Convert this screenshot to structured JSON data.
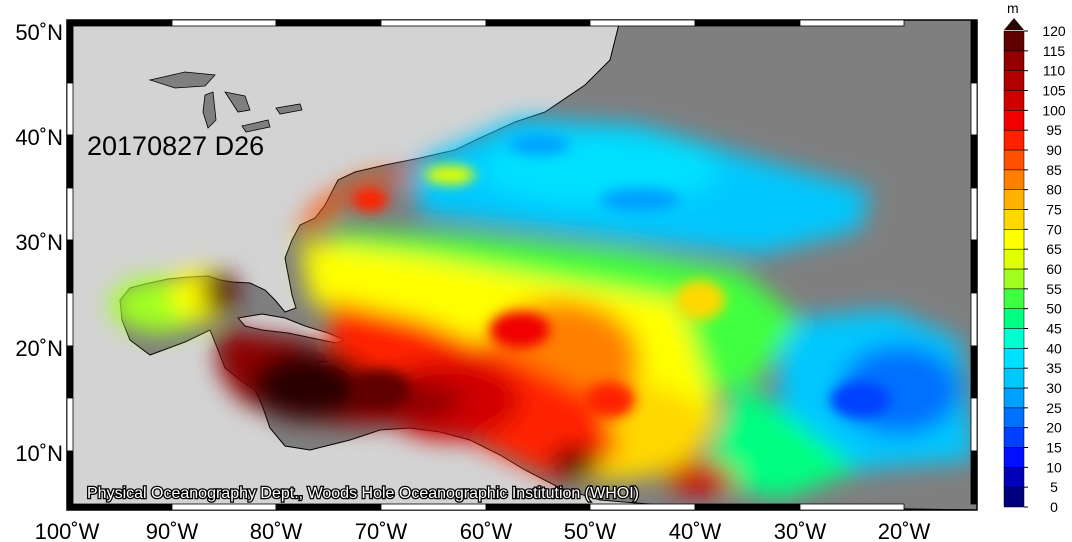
{
  "map": {
    "date_label": "20170827 D26",
    "credit": "Physical Oceanography Dept., Woods Hole Oceanographic Institution (WHOI)",
    "lon_ticks": [
      "100˚W",
      "90˚W",
      "80˚W",
      "70˚W",
      "60˚W",
      "50˚W",
      "40˚W",
      "30˚W",
      "20˚W"
    ],
    "lat_ticks": [
      "50˚N",
      "40˚N",
      "30˚N",
      "20˚N",
      "10˚N"
    ],
    "lon_range": [
      -100,
      -15
    ],
    "lat_range": [
      5,
      51
    ],
    "land_color": "#d3d3d3",
    "foreign_land_color": "#7f7f7f"
  },
  "colorbar": {
    "unit": "m",
    "ticks": [
      "120",
      "115",
      "110",
      "105",
      "100",
      "95",
      "90",
      "85",
      "80",
      "75",
      "70",
      "65",
      "60",
      "55",
      "50",
      "45",
      "40",
      "35",
      "30",
      "25",
      "20",
      "15",
      "10",
      "5",
      "0"
    ],
    "colors": [
      "#00007f",
      "#0000bb",
      "#0010ff",
      "#0040ff",
      "#0070ff",
      "#00a0ff",
      "#00c8ff",
      "#00e0ff",
      "#00ffd0",
      "#00ff80",
      "#40ff40",
      "#a0ff20",
      "#e0ff00",
      "#ffff00",
      "#ffd800",
      "#ffb000",
      "#ff8000",
      "#ff5000",
      "#ff2000",
      "#f00000",
      "#d00000",
      "#b00000",
      "#900000",
      "#600000",
      "#2a0000"
    ]
  }
}
